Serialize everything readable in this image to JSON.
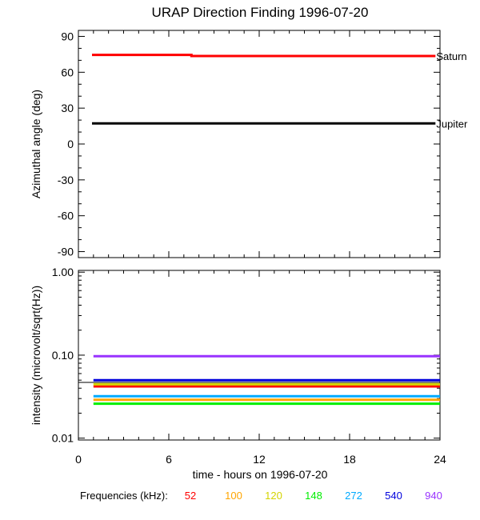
{
  "title": "URAP Direction Finding  1996-07-20",
  "xlabel": "time - hours on 1996-07-20",
  "legend_label": "Frequencies (kHz):",
  "chart_data": [
    {
      "type": "line",
      "ylabel": "Azimuthal angle (deg)",
      "xlim": [
        0,
        24
      ],
      "ylim": [
        -95,
        95
      ],
      "x_ticks": [
        0,
        6,
        12,
        18,
        24
      ],
      "y_ticks": [
        90,
        60,
        30,
        0,
        -30,
        -60,
        -90
      ],
      "series": [
        {
          "name": "Saturn",
          "color": "#ff0000",
          "x": [
            0.9,
            7.5,
            7.5,
            23.7
          ],
          "y": [
            74.5,
            74.5,
            73.6,
            73.6
          ]
        },
        {
          "name": "Jupiter",
          "color": "#000000",
          "x": [
            0.9,
            23.7
          ],
          "y": [
            17.2,
            17.2
          ]
        }
      ]
    },
    {
      "type": "line",
      "ylabel": "intensity (microvolt/sqrt(Hz))",
      "yscale": "log",
      "xlim": [
        0,
        24
      ],
      "ylim": [
        0.0095,
        1.05
      ],
      "x_ticks": [
        0,
        6,
        12,
        18,
        24
      ],
      "y_ticks": [
        1.0,
        0.1,
        0.01
      ],
      "y_tick_labels": [
        "1.00",
        "0.10",
        "0.01"
      ],
      "series": [
        {
          "name": "52",
          "color": "#ff0000",
          "x": [
            1,
            24
          ],
          "y": [
            0.042,
            0.042
          ]
        },
        {
          "name": "100",
          "color": "#ffa500",
          "x": [
            1,
            24
          ],
          "y": [
            0.029,
            0.029
          ]
        },
        {
          "name": "120",
          "color": "#d4d400",
          "x": [
            1,
            24
          ],
          "y": [
            0.0445,
            0.0445
          ]
        },
        {
          "name": "148",
          "color": "#00ee00",
          "x": [
            1,
            24
          ],
          "y": [
            0.026,
            0.026
          ]
        },
        {
          "name": "272",
          "color": "#00aaff",
          "x": [
            1,
            24
          ],
          "y": [
            0.032,
            0.032
          ]
        },
        {
          "name": "540",
          "color": "#0000dd",
          "x": [
            1,
            24
          ],
          "y": [
            0.05,
            0.05
          ]
        },
        {
          "name": "940",
          "color": "#9933ff",
          "x": [
            1,
            24
          ],
          "y": [
            0.097,
            0.097
          ]
        }
      ],
      "hline": 0.047
    }
  ]
}
